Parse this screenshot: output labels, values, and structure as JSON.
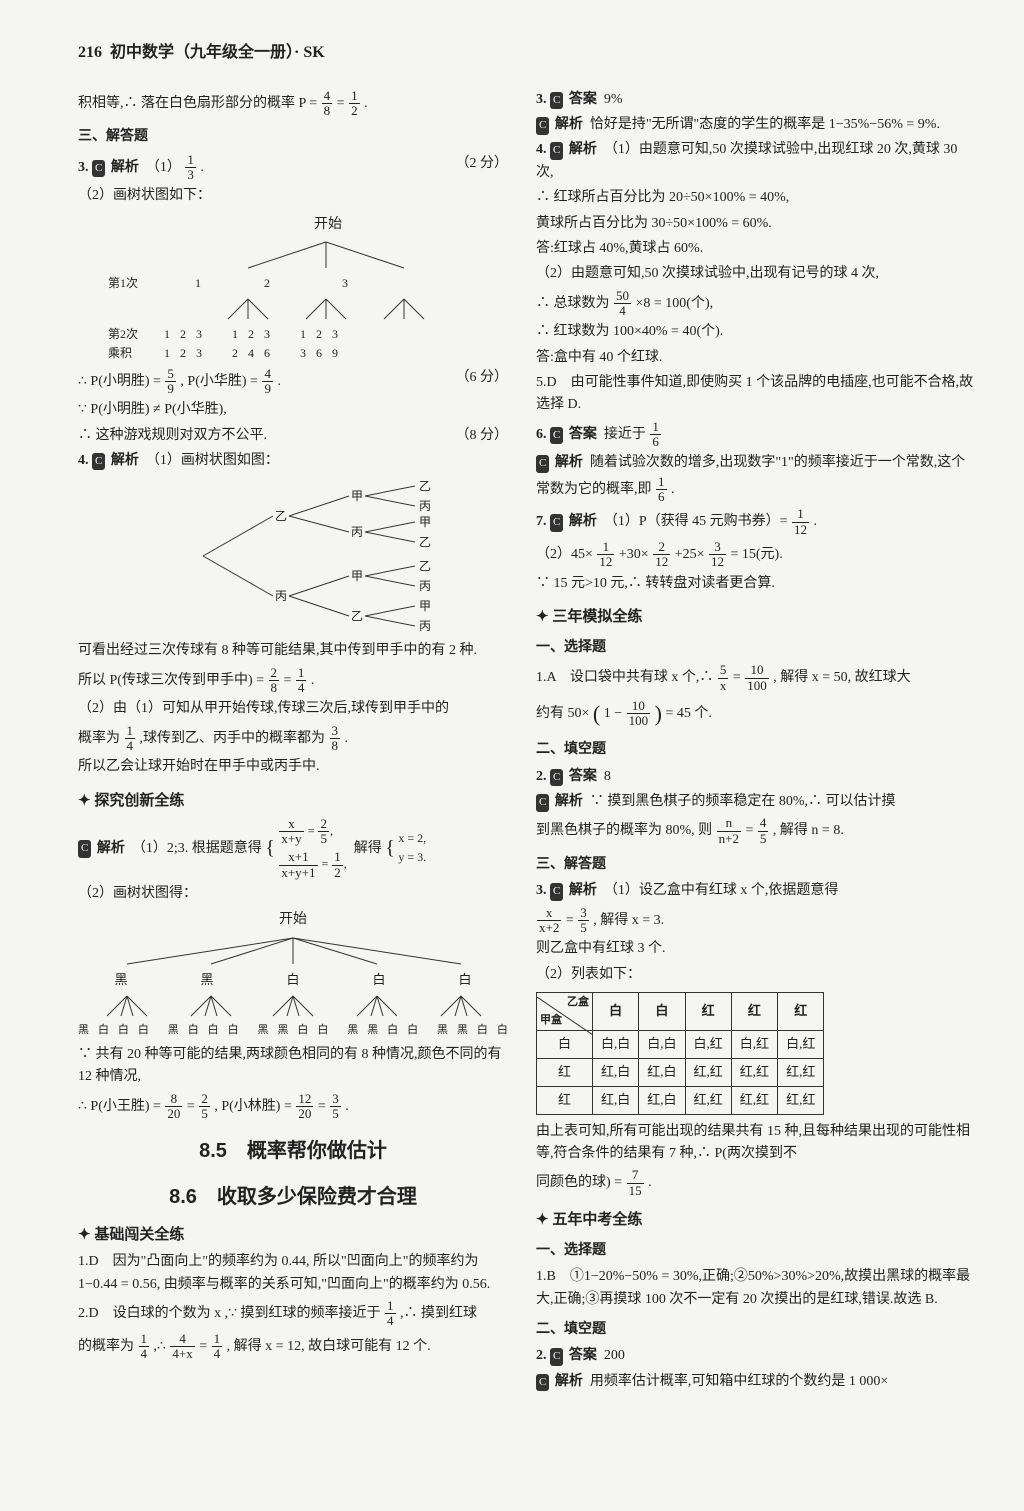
{
  "header": {
    "page_no": "216",
    "title": "初中数学（九年级全一册）· SK"
  },
  "left": {
    "intro": "积相等,∴ 落在白色扇形部分的概率 P =",
    "intro_frac1_n": "4",
    "intro_frac1_d": "8",
    "intro_equals": " = ",
    "intro_frac2_n": "1",
    "intro_frac2_d": "2",
    "intro_end": ".",
    "sec3_head": "三、解答题",
    "q3_label": "3.",
    "q3_jiexi": "解析",
    "q3_part1": "（1）",
    "q3_frac_n": "1",
    "q3_frac_d": "3",
    "q3_period": ".",
    "q3_score1": "（2 分）",
    "q3_part2": "（2）画树状图如下：",
    "tree1_root": "开始",
    "tree1_row1_label": "第1次",
    "tree1_row1": [
      "1",
      "2",
      "3"
    ],
    "tree1_row2_label": "第2次",
    "tree1_row2": [
      "1",
      "2",
      "3",
      "1",
      "2",
      "3",
      "1",
      "2",
      "3"
    ],
    "tree1_row3_label": "乘积",
    "tree1_row3": [
      "1",
      "2",
      "3",
      "2",
      "4",
      "6",
      "3",
      "6",
      "9"
    ],
    "q3_score2": "（6 分）",
    "q3_calc1a": "∴ P(小明胜) = ",
    "q3_p1_n": "5",
    "q3_p1_d": "9",
    "q3_calc1b": ", P(小华胜) = ",
    "q3_p2_n": "4",
    "q3_p2_d": "9",
    "q3_calc1c": ".",
    "q3_calc2": "∵ P(小明胜) ≠ P(小华胜),",
    "q3_calc3": "∴ 这种游戏规则对双方不公平.",
    "q3_score3": "（8 分）",
    "q4_label": "4.",
    "q4_jiexi": "解析",
    "q4_part1": "（1）画树状图如图：",
    "tree2_levels": {
      "L1": [
        "乙",
        "丙"
      ],
      "L2_a": [
        "甲",
        "丙"
      ],
      "L2_b": [
        "甲",
        "乙"
      ],
      "L3_a1": [
        "乙",
        "丙"
      ],
      "L3_a2": [
        "甲",
        "乙"
      ],
      "L3_b1": [
        "乙",
        "丙"
      ],
      "L3_b2": [
        "甲",
        "丙"
      ]
    },
    "q4_text1": "可看出经过三次传球有 8 种等可能结果,其中传到甲手中的有 2 种.",
    "q4_calc1a": "所以 P(传球三次传到甲手中) = ",
    "q4_f1_n": "2",
    "q4_f1_d": "8",
    "q4_eq1": " = ",
    "q4_f2_n": "1",
    "q4_f2_d": "4",
    "q4_calc1b": ".",
    "q4_text2a": "（2）由（1）可知从甲开始传球,传球三次后,球传到甲手中的",
    "q4_text2b": "概率为",
    "q4_f3_n": "1",
    "q4_f3_d": "4",
    "q4_text2c": ",球传到乙、丙手中的概率都为",
    "q4_f4_n": "3",
    "q4_f4_d": "8",
    "q4_text2d": ".",
    "q4_text3": "所以乙会让球开始时在甲手中或丙手中.",
    "tan_head": "探究创新全练",
    "tan_label": "",
    "tan_jiexi": "解析",
    "tan_p1a": "（1）2;3. 根据题意得",
    "tan_eq_top_lhs_n": "x",
    "tan_eq_top_lhs_d": "x+y",
    "tan_eq_top_rhs_n": "2",
    "tan_eq_top_rhs_d": "5",
    "tan_eq_bot_lhs_n": "x+1",
    "tan_eq_bot_lhs_d": "x+y+1",
    "tan_eq_bot_rhs_n": "1",
    "tan_eq_bot_rhs_d": "2",
    "tan_solve": "解得",
    "tan_sol1": "x = 2,",
    "tan_sol2": "y = 3.",
    "tan_p2": "（2）画树状图得：",
    "tree3_root": "开始",
    "tree3_row1": [
      "黑",
      "黑",
      "白",
      "白",
      "白"
    ],
    "tree3_row2": [
      "黑",
      "白",
      "白",
      "白",
      "黑",
      "白",
      "白",
      "白",
      "黑",
      "黑",
      "白",
      "白",
      "黑",
      "黑",
      "白",
      "白",
      "黑",
      "黑",
      "白",
      "白"
    ],
    "tan_p3": "∵ 共有 20 种等可能的结果,两球颜色相同的有 8 种情况,颜色不同的有 12 种情况,",
    "tan_p4a": "∴ P(小王胜) = ",
    "tan_f1_n": "8",
    "tan_f1_d": "20",
    "tan_eq2": " = ",
    "tan_f2_n": "2",
    "tan_f2_d": "5",
    "tan_p4b": ", P(小林胜) = ",
    "tan_f3_n": "12",
    "tan_f3_d": "20",
    "tan_eq3": " = ",
    "tan_f4_n": "3",
    "tan_f4_d": "5",
    "tan_p4c": ".",
    "title85": "8.5　概率帮你做估计",
    "title86": "8.6　收取多少保险费才合理",
    "jichu_head": "基础闯关全练",
    "jc_q1a": "1.D　因为\"凸面向上\"的频率约为 0.44, 所以\"凹面向上\"的频率约为 1−0.44 = 0.56, 由频率与概率的关系可知,\"凹面向上\"的概率约为 0.56.",
    "jc_q2a": "2.D　设白球的个数为 x ,∵ 摸到红球的频率接近于",
    "jc_q2_f1_n": "1",
    "jc_q2_f1_d": "4",
    "jc_q2b": ",∴ 摸到红球",
    "jc_q2c": "的概率为",
    "jc_q2_f2_n": "1",
    "jc_q2_f2_d": "4",
    "jc_q2d": ",∴ ",
    "jc_q2_f3_n": "4",
    "jc_q2_f3_d": "4+x",
    "jc_q2_eq": " = ",
    "jc_q2_f4_n": "1",
    "jc_q2_f4_d": "4",
    "jc_q2e": ", 解得 x = 12, 故白球可能有 12 个."
  },
  "right": {
    "r3_a": "3.",
    "r3_ans_label": "答案",
    "r3_ans": "9%",
    "r3_jx_label": "解析",
    "r3_jx": "恰好是持\"无所谓\"态度的学生的概率是 1−35%−56% = 9%.",
    "r4_a": "4.",
    "r4_jx_label": "解析",
    "r4_p1": "（1）由题意可知,50 次摸球试验中,出现红球 20 次,黄球 30 次,",
    "r4_p2": "∴ 红球所占百分比为 20÷50×100% = 40%,",
    "r4_p3": "黄球所占百分比为 30÷50×100% = 60%.",
    "r4_p4": "答:红球占 40%,黄球占 60%.",
    "r4_p5": "（2）由题意可知,50 次摸球试验中,出现有记号的球 4 次,",
    "r4_p6a": "∴ 总球数为",
    "r4_f1_n": "50",
    "r4_f1_d": "4",
    "r4_p6b": "×8 = 100(个),",
    "r4_p7": "∴ 红球数为 100×40% = 40(个).",
    "r4_p8": "答:盒中有 40 个红球.",
    "r5": "5.D　由可能性事件知道,即使购买 1 个该品牌的电插座,也可能不合格,故选择 D.",
    "r6_a": "6.",
    "r6_ans_label": "答案",
    "r6_ans_a": "接近于",
    "r6_f1_n": "1",
    "r6_f1_d": "6",
    "r6_jx_label": "解析",
    "r6_jx_a": "随着试验次数的增多,出现数字\"1\"的频率接近于一个常数,这个常数为它的概率,即",
    "r6_jx_fn": "1",
    "r6_jx_fd": "6",
    "r6_jx_b": ".",
    "r7_a": "7.",
    "r7_jx_label": "解析",
    "r7_p1": "（1）P（获得 45 元购书券）= ",
    "r7_f1_n": "1",
    "r7_f1_d": "12",
    "r7_p1b": ".",
    "r7_p2a": "（2）45×",
    "r7_f2_n": "1",
    "r7_f2_d": "12",
    "r7_p2b": "+30×",
    "r7_f3_n": "2",
    "r7_f3_d": "12",
    "r7_p2c": "+25×",
    "r7_f4_n": "3",
    "r7_f4_d": "12",
    "r7_p2d": " = 15(元).",
    "r7_p3": "∵ 15 元>10 元,∴ 转转盘对读者更合算.",
    "san_head": "三年模拟全练",
    "san_s1_head": "一、选择题",
    "san_q1a": "1.A　设口袋中共有球 x 个,∴ ",
    "san_f1_n": "5",
    "san_f1_d": "x",
    "san_q1eq": " = ",
    "san_f2_n": "10",
    "san_f2_d": "100",
    "san_q1b": ", 解得 x = 50, 故红球大",
    "san_q1c": "约有 50×",
    "san_big_open": "(",
    "san_big_close": ")",
    "san_q1d": "1 − ",
    "san_f3_n": "10",
    "san_f3_d": "100",
    "san_q1e": " = 45 个.",
    "san_s2_head": "二、填空题",
    "san_q2a": "2.",
    "san_q2_ans_label": "答案",
    "san_q2_ans": "8",
    "san_q2_jx_label": "解析",
    "san_q2_jx_a": "∵ 摸到黑色棋子的频率稳定在 80%,∴ 可以估计摸",
    "san_q2_jx_b": "到黑色棋子的概率为 80%, 则",
    "san_q2_fa_n": "n",
    "san_q2_fa_d": "n+2",
    "san_q2_eq": " = ",
    "san_q2_fb_n": "4",
    "san_q2_fb_d": "5",
    "san_q2_jx_c": ", 解得 n = 8.",
    "san_s3_head": "三、解答题",
    "san_q3a": "3.",
    "san_q3_jx_label": "解析",
    "san_q3_p1": "（1）设乙盒中有红球 x 个,依据题意得",
    "san_q3_fa_n": "x",
    "san_q3_fa_d": "x+2",
    "san_q3_eq": " = ",
    "san_q3_fb_n": "3",
    "san_q3_fb_d": "5",
    "san_q3_p2": ", 解得 x = 3.",
    "san_q3_p3": "则乙盒中有红球 3 个.",
    "san_q3_p4": "（2）列表如下：",
    "table": {
      "corner_top": "乙盒",
      "corner_bottom": "甲盒",
      "cols": [
        "白",
        "白",
        "红",
        "红",
        "红"
      ],
      "rows": [
        {
          "label": "白",
          "cells": [
            "白,白",
            "白,白",
            "白,红",
            "白,红",
            "白,红"
          ]
        },
        {
          "label": "红",
          "cells": [
            "红,白",
            "红,白",
            "红,红",
            "红,红",
            "红,红"
          ]
        },
        {
          "label": "红",
          "cells": [
            "红,白",
            "红,白",
            "红,红",
            "红,红",
            "红,红"
          ]
        }
      ]
    },
    "san_q3_p5": "由上表可知,所有可能出现的结果共有 15 种,且每种结果出现的可能性相等,符合条件的结果有 7 种,∴ P(两次摸到不",
    "san_q3_p6a": "同颜色的球) = ",
    "san_q3_f_n": "7",
    "san_q3_f_d": "15",
    "san_q3_p6b": ".",
    "wu_head": "五年中考全练",
    "wu_s1_head": "一、选择题",
    "wu_q1": "1.B　①1−20%−50% = 30%,正确;②50%>30%>20%,故摸出黑球的概率最大,正确;③再摸球 100 次不一定有 20 次摸出的是红球,错误.故选 B.",
    "wu_s2_head": "二、填空题",
    "wu_q2a": "2.",
    "wu_q2_ans_label": "答案",
    "wu_q2_ans": "200",
    "wu_q2_jx_label": "解析",
    "wu_q2_jx": "用频率估计概率,可知箱中红球的个数约是 1 000×"
  }
}
